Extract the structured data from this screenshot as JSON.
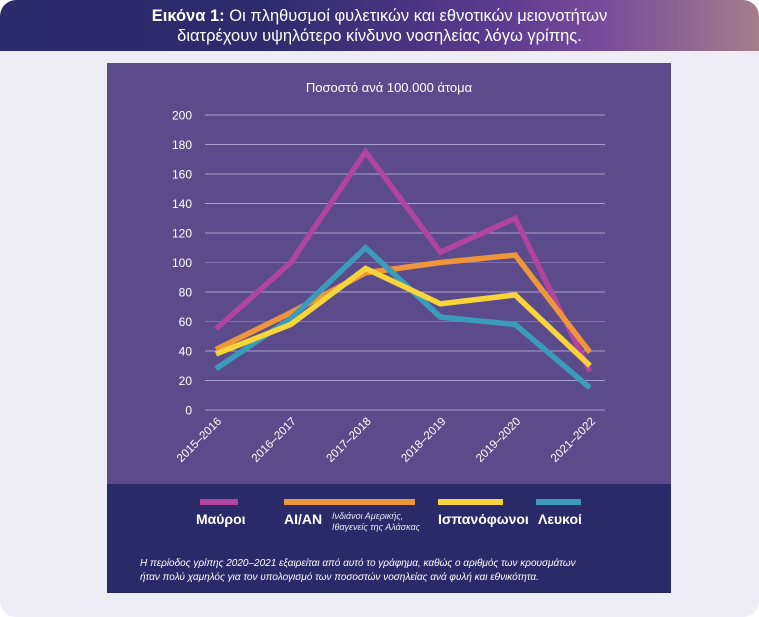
{
  "header": {
    "title_bold": "Εικόνα 1:",
    "title_line1": "Οι πληθυσμοί φυλετικών και εθνοτικών μειονοτήτων",
    "title_line2": "διατρέχουν υψηλότερο κίνδυνο νοσηλείας λόγω γρίπης."
  },
  "colors": {
    "background": "#eeedf5",
    "panel": "#5b4b8a",
    "legend_band": "#2b2a69",
    "black_series": "#b0449e",
    "aian_series": "#f0963a",
    "hispanic_series": "#f7d53a",
    "white_series": "#3a9cba"
  },
  "chart_data": {
    "type": "line",
    "title": "Ποσοστό ανά 100.000 άτομα",
    "xlabel": "",
    "ylabel": "",
    "categories": [
      "2015–2016",
      "2016–2017",
      "2017–2018",
      "2018–2019",
      "2019–2020",
      "2021–2022"
    ],
    "yticks": [
      0,
      20,
      40,
      60,
      80,
      100,
      120,
      140,
      160,
      180,
      200
    ],
    "ylim": [
      0,
      200
    ],
    "grid": true,
    "legend_position": "bottom",
    "series": [
      {
        "key": "black",
        "name": "Μαύροι",
        "note": "",
        "color": "#b0449e",
        "values": [
          55,
          100,
          175,
          107,
          130,
          26
        ]
      },
      {
        "key": "aian",
        "name": "AI/AN",
        "note": "Ινδιάνοι Αμερικής, Ιθαγενείς της Αλάσκας",
        "color": "#f0963a",
        "values": [
          41,
          66,
          93,
          100,
          105,
          39
        ]
      },
      {
        "key": "hispanic",
        "name": "Ισπανόφωνοι",
        "note": "",
        "color": "#f7d53a",
        "values": [
          38,
          58,
          96,
          72,
          78,
          30
        ]
      },
      {
        "key": "white",
        "name": "Λευκοί",
        "note": "",
        "color": "#3a9cba",
        "values": [
          28,
          62,
          110,
          63,
          58,
          15
        ]
      }
    ]
  },
  "footnote": {
    "line1": "Η περίοδος γρίπης 2020–2021 εξαιρείται από αυτό το γράφημα, καθώς ο αριθμός των κρουσμάτων",
    "line2": "ήταν πολύ χαμηλός για τον υπολογισμό των ποσοστών νοσηλείας ανά φυλή και εθνικότητα."
  }
}
